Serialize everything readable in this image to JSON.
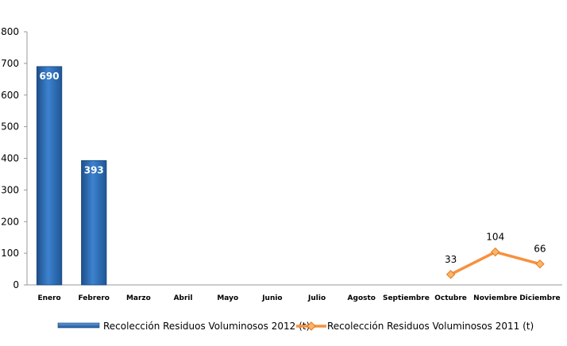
{
  "chart_data": {
    "type": "bar",
    "categories": [
      "Enero",
      "Febrero",
      "Marzo",
      "Abril",
      "Mayo",
      "Junio",
      "Julio",
      "Agosto",
      "Septiembre",
      "Octubre",
      "Noviembre",
      "Diciembre"
    ],
    "series": [
      {
        "name": "Recolección Residuos Voluminosos 2012 (t)",
        "type": "bar",
        "color": "#2e6fb7",
        "values": [
          690,
          393,
          null,
          null,
          null,
          null,
          null,
          null,
          null,
          null,
          null,
          null
        ]
      },
      {
        "name": "Recolección Residuos Voluminosos 2011 (t)",
        "type": "line",
        "color": "#f7913d",
        "values": [
          null,
          null,
          null,
          null,
          null,
          null,
          null,
          null,
          null,
          33,
          104,
          66
        ]
      }
    ],
    "ylim": [
      0,
      800
    ],
    "yticks": [
      0,
      100,
      200,
      300,
      400,
      500,
      600,
      700,
      800
    ],
    "grid": false,
    "legend": "bottom",
    "title": "",
    "xlabel": "",
    "ylabel": ""
  }
}
